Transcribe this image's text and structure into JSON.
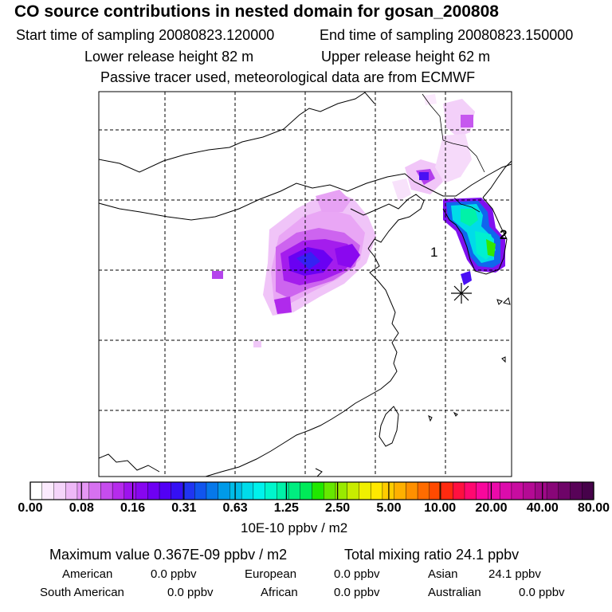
{
  "header": {
    "title": "CO  source contributions in nested domain for gosan_200808",
    "start_label": "Start time of sampling 20080823.120000",
    "end_label": "End time of sampling 20080823.150000",
    "lower_label": "Lower release height   82 m",
    "upper_label": "Upper release height   62 m",
    "tracer_note": "Passive tracer used, meteorological data are from ECMWF"
  },
  "map": {
    "labels": {
      "label_1": "1",
      "label_2": "2"
    },
    "receptor_marker": "asterisk-receptor"
  },
  "colorbar": {
    "ticks": [
      "0.00",
      "0.08",
      "0.16",
      "0.31",
      "0.63",
      "1.25",
      "2.50",
      "5.00",
      "10.00",
      "20.00",
      "40.00",
      "80.00"
    ],
    "colors": [
      "#ffffff",
      "#fbeafd",
      "#f5d4fa",
      "#eeb8f7",
      "#e597f4",
      "#d671f0",
      "#c64cee",
      "#b62bec",
      "#9e12ee",
      "#8706f0",
      "#6e00f3",
      "#5200f5",
      "#3510f5",
      "#2035f2",
      "#1155ee",
      "#0678ea",
      "#009ae8",
      "#00bce8",
      "#00dcea",
      "#00f2ec",
      "#00f6cc",
      "#00f2a8",
      "#00ee80",
      "#00ea58",
      "#20e800",
      "#66e800",
      "#99ea00",
      "#c8ec00",
      "#f0f000",
      "#ffe800",
      "#ffcc00",
      "#ffb000",
      "#ff9000",
      "#ff6c00",
      "#ff4a00",
      "#ff2a10",
      "#ff1040",
      "#ff0870",
      "#f8089c",
      "#ec0aaa",
      "#dc0cac",
      "#c80ca0",
      "#b40a94",
      "#a00888",
      "#880678",
      "#6e0468",
      "#580358",
      "#46024a"
    ],
    "units": "10E-10 ppbv / m2"
  },
  "summary": {
    "max_text": "Maximum value  0.367E-09 ppbv / m2",
    "total_text": "Total mixing ratio       24.1 ppbv",
    "regions": [
      {
        "name": "American",
        "value": "0.0 ppbv"
      },
      {
        "name": "European",
        "value": "0.0 ppbv"
      },
      {
        "name": "Asian",
        "value": "24.1 ppbv"
      },
      {
        "name": "South American",
        "value": "0.0 ppbv"
      },
      {
        "name": "African",
        "value": "0.0 ppbv"
      },
      {
        "name": "Australian",
        "value": "0.0 ppbv"
      }
    ]
  }
}
